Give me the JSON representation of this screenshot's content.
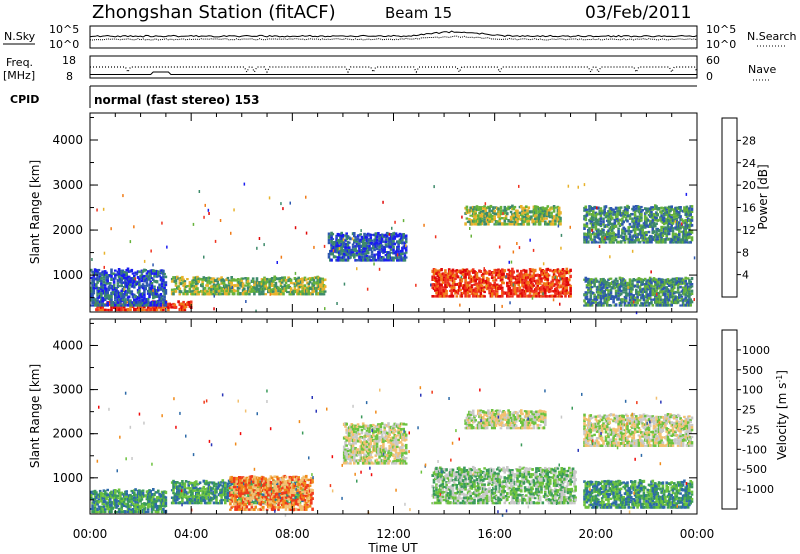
{
  "header": {
    "station": "Zhongshan Station (fitACF)",
    "beam": "Beam 15",
    "date": "03/Feb/2011"
  },
  "noise_panel": {
    "left_label": "N.Sky",
    "right_label": "N.Search",
    "left_ticks": [
      "10^5",
      "10^0"
    ],
    "right_ticks": [
      "10^5",
      "10^0"
    ]
  },
  "freq_panel": {
    "left_label_1": "Freq.",
    "left_label_2": "[MHz]",
    "left_ticks": [
      "18",
      "8"
    ],
    "right_label": "Nave",
    "right_ticks": [
      "60",
      "0"
    ]
  },
  "cpid_panel": {
    "label": "CPID",
    "mode": "normal (fast stereo) 153"
  },
  "time_axis": {
    "label": "Time UT",
    "ticks": [
      "00:00",
      "04:00",
      "08:00",
      "12:00",
      "16:00",
      "20:00",
      "00:00"
    ]
  },
  "chart_data": [
    {
      "type": "heatmap",
      "title": "",
      "parameter": "Power",
      "xlabel": "Time UT",
      "ylabel": "Slant Range [km]",
      "ylim": [
        180,
        4600
      ],
      "xlim_hours": [
        0,
        24
      ],
      "y_ticks": [
        "1000",
        "2000",
        "3000",
        "4000"
      ],
      "colorbar_label": "Power [dB]",
      "colorbar_ticks": [
        "4",
        "8",
        "12",
        "16",
        "20",
        "24",
        "28"
      ],
      "colorbar_colors": [
        "#1a1cf0",
        "#2d58b0",
        "#3d8a6a",
        "#66b23a",
        "#e8b22b",
        "#f07b17",
        "#f0321e",
        "#e00808"
      ],
      "echo_regions": [
        {
          "t0": 0.2,
          "t1": 4.0,
          "r0": 200,
          "r1": 380,
          "level": 6
        },
        {
          "t0": 0.0,
          "t1": 3.0,
          "r0": 300,
          "r1": 1100,
          "level": 1
        },
        {
          "t0": 3.2,
          "t1": 9.3,
          "r0": 550,
          "r1": 920,
          "level": 3
        },
        {
          "t0": 9.4,
          "t1": 12.5,
          "r0": 1300,
          "r1": 1900,
          "level": 1
        },
        {
          "t0": 13.5,
          "t1": 19.0,
          "r0": 500,
          "r1": 1100,
          "level": 6
        },
        {
          "t0": 14.8,
          "t1": 18.6,
          "r0": 2100,
          "r1": 2500,
          "level": 3
        },
        {
          "t0": 19.5,
          "t1": 23.8,
          "r0": 1700,
          "r1": 2500,
          "level": 2
        },
        {
          "t0": 19.5,
          "t1": 23.8,
          "r0": 300,
          "r1": 900,
          "level": 2
        }
      ]
    },
    {
      "type": "heatmap",
      "title": "",
      "parameter": "Velocity",
      "xlabel": "Time UT",
      "ylabel": "Slant Range [km]",
      "ylim": [
        180,
        4600
      ],
      "xlim_hours": [
        0,
        24
      ],
      "y_ticks": [
        "1000",
        "2000",
        "3000",
        "4000"
      ],
      "colorbar_label": "Velocity [m s^-1]",
      "colorbar_ticks": [
        "1000",
        "500",
        "100",
        "25",
        "-25",
        "-100",
        "-500",
        "-1000"
      ],
      "colorbar_colors": [
        "#2a36b8",
        "#2d6aa8",
        "#3a9a5a",
        "#6cc23e",
        "#c8c8c8",
        "#f2c070",
        "#f08a1a",
        "#f03a1a",
        "#f00a0a"
      ],
      "echo_regions": [
        {
          "t0": 0.0,
          "t1": 3.0,
          "r0": 200,
          "r1": 700,
          "level": 2
        },
        {
          "t0": 3.2,
          "t1": 8.4,
          "r0": 400,
          "r1": 900,
          "level": 2
        },
        {
          "t0": 5.5,
          "t1": 8.8,
          "r0": 250,
          "r1": 1000,
          "level": 6
        },
        {
          "t0": 10.0,
          "t1": 12.5,
          "r0": 1300,
          "r1": 2200,
          "level": 4
        },
        {
          "t0": 13.5,
          "t1": 19.2,
          "r0": 400,
          "r1": 1200,
          "level": 3
        },
        {
          "t0": 14.8,
          "t1": 18.0,
          "r0": 2100,
          "r1": 2500,
          "level": 4
        },
        {
          "t0": 19.5,
          "t1": 23.8,
          "r0": 1700,
          "r1": 2400,
          "level": 4
        },
        {
          "t0": 19.5,
          "t1": 23.8,
          "r0": 300,
          "r1": 900,
          "level": 2
        }
      ]
    }
  ]
}
